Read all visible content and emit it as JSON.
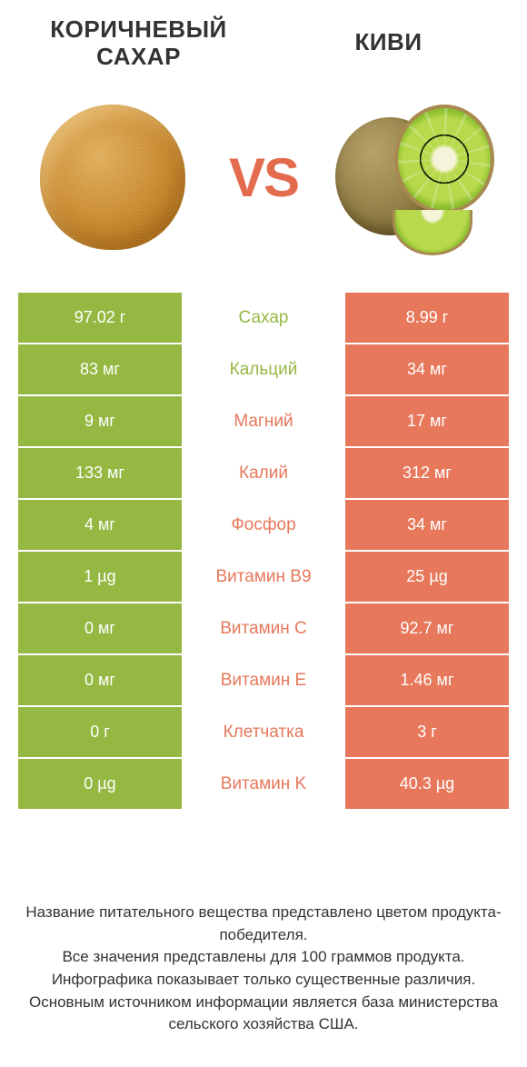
{
  "colors": {
    "left_bg": "#95b843",
    "right_bg": "#e7785b",
    "mid_green_text": "#95b843",
    "mid_orange_text": "#e7785b",
    "header_text": "#333333",
    "cell_text": "#ffffff",
    "vs_text": "#e36b4e"
  },
  "header": {
    "left_title": "КОРИЧНЕВЫЙ САХАР",
    "right_title": "КИВИ",
    "vs_label": "VS"
  },
  "rows": [
    {
      "left": "97.02 г",
      "label": "Сахар",
      "right": "8.99 г",
      "winner": "left"
    },
    {
      "left": "83 мг",
      "label": "Кальций",
      "right": "34 мг",
      "winner": "left"
    },
    {
      "left": "9 мг",
      "label": "Магний",
      "right": "17 мг",
      "winner": "right"
    },
    {
      "left": "133 мг",
      "label": "Калий",
      "right": "312 мг",
      "winner": "right"
    },
    {
      "left": "4 мг",
      "label": "Фосфор",
      "right": "34 мг",
      "winner": "right"
    },
    {
      "left": "1 µg",
      "label": "Витамин B9",
      "right": "25 µg",
      "winner": "right"
    },
    {
      "left": "0 мг",
      "label": "Витамин C",
      "right": "92.7 мг",
      "winner": "right"
    },
    {
      "left": "0 мг",
      "label": "Витамин E",
      "right": "1.46 мг",
      "winner": "right"
    },
    {
      "left": "0 г",
      "label": "Клетчатка",
      "right": "3 г",
      "winner": "right"
    },
    {
      "left": "0 µg",
      "label": "Витамин K",
      "right": "40.3 µg",
      "winner": "right"
    }
  ],
  "footer": {
    "line1": "Название питательного вещества представлено цветом продукта-победителя.",
    "line2": "Все значения представлены для 100 граммов продукта.",
    "line3": "Инфографика показывает только существенные различия.",
    "line4": "Основным источником информации является база министерства сельского хозяйства США."
  }
}
